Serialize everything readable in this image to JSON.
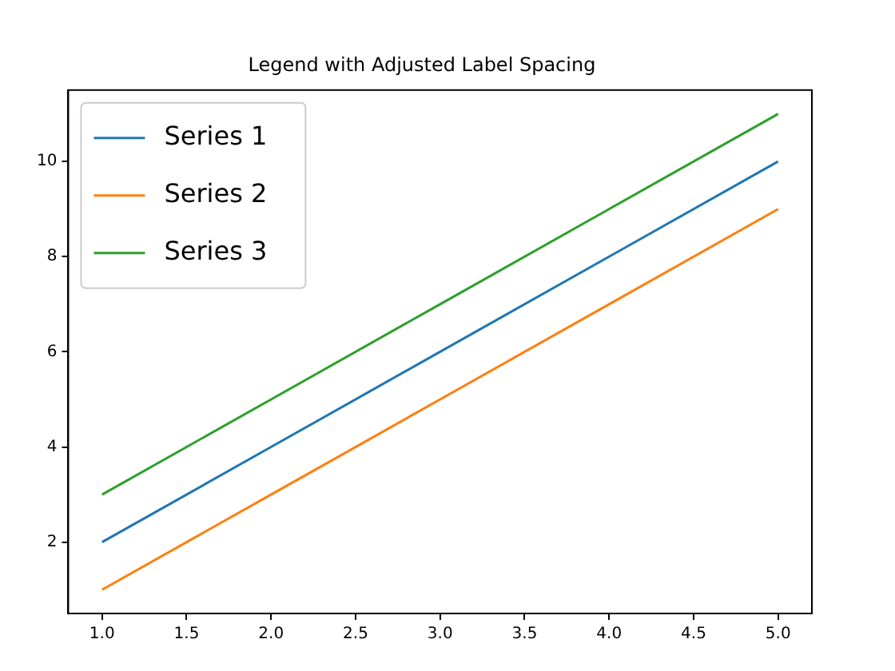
{
  "chart_data": {
    "type": "line",
    "title": "Legend with Adjusted Label Spacing",
    "x": [
      1,
      2,
      3,
      4,
      5
    ],
    "series": [
      {
        "name": "Series 1",
        "color": "#1f77b4",
        "values": [
          2,
          4,
          6,
          8,
          10
        ]
      },
      {
        "name": "Series 2",
        "color": "#ff7f0e",
        "values": [
          1,
          3,
          5,
          7,
          9
        ]
      },
      {
        "name": "Series 3",
        "color": "#2ca02c",
        "values": [
          3,
          5,
          7,
          9,
          11
        ]
      }
    ],
    "xlim": [
      0.8,
      5.2
    ],
    "xticks": [
      {
        "value": 1,
        "label": "1.0"
      },
      {
        "value": 1.5,
        "label": "1.5"
      },
      {
        "value": 2,
        "label": "2.0"
      },
      {
        "value": 2.5,
        "label": "2.5"
      },
      {
        "value": 3,
        "label": "3.0"
      },
      {
        "value": 3.5,
        "label": "3.5"
      },
      {
        "value": 4,
        "label": "4.0"
      },
      {
        "value": 4.5,
        "label": "4.5"
      },
      {
        "value": 5,
        "label": "5.0"
      }
    ],
    "ylim": [
      0.5,
      11.5
    ],
    "yticks": [
      2,
      4,
      6,
      8,
      10
    ],
    "grid": false,
    "legend": "top left",
    "marker": "none",
    "line_style": "solid"
  }
}
